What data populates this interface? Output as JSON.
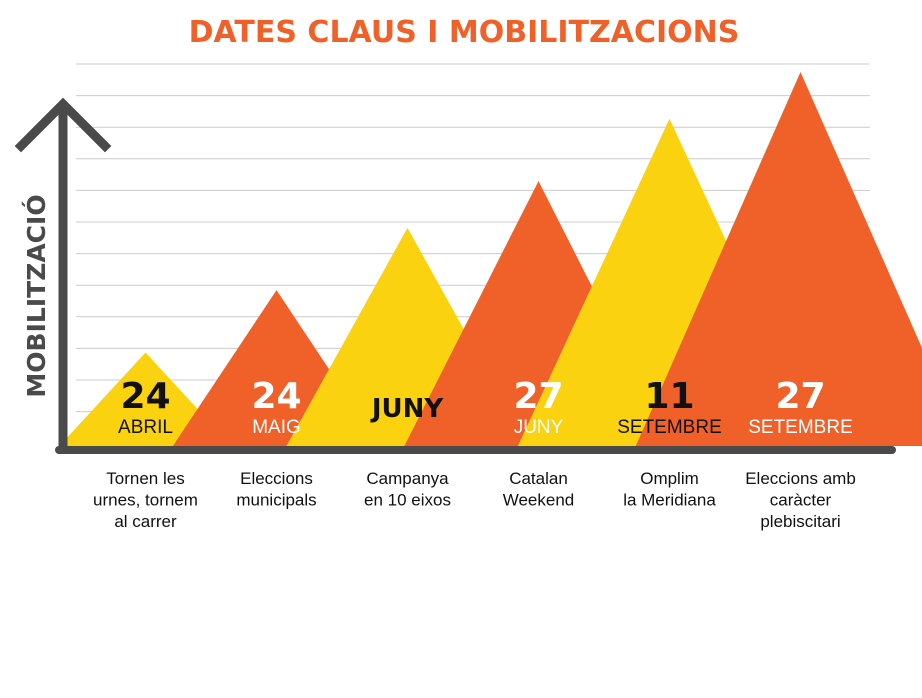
{
  "chart_data": {
    "type": "area",
    "title": "DATES CLAUS I MOBILITZACIONS",
    "ylabel": "MOBILITZACIÓ",
    "xlabel": "",
    "ylim": [
      0,
      12
    ],
    "grid": true,
    "legend": "none",
    "categories": [
      {
        "day": "24",
        "month": "ABRIL",
        "description": [
          "Tornen les",
          "urnes, tornem",
          "al carrer"
        ]
      },
      {
        "day": "24",
        "month": "MAIG",
        "description": [
          "Eleccions",
          "municipals"
        ]
      },
      {
        "day": "",
        "month": "JUNY",
        "description": [
          "Campanya",
          "en 10 eixos"
        ]
      },
      {
        "day": "27",
        "month": "JUNY",
        "description": [
          "Catalan",
          "Weekend"
        ]
      },
      {
        "day": "11",
        "month": "SETEMBRE",
        "description": [
          "Omplim",
          "la Meridiana"
        ]
      },
      {
        "day": "27",
        "month": "SETEMBRE",
        "description": [
          "Eleccions amb",
          "caràcter",
          "plebiscitari"
        ]
      }
    ],
    "values": [
      3,
      5,
      7,
      8.5,
      10.5,
      12
    ]
  },
  "colors": {
    "title": "#f0612a",
    "orange": "#f0612a",
    "yellow": "#fad20f",
    "axis": "#4a4a4a",
    "grid": "#cccccc",
    "dark_text": "#111111",
    "light_text": "#ffffff"
  },
  "peak_colors": [
    "yellow",
    "orange",
    "yellow",
    "orange",
    "yellow",
    "orange"
  ]
}
